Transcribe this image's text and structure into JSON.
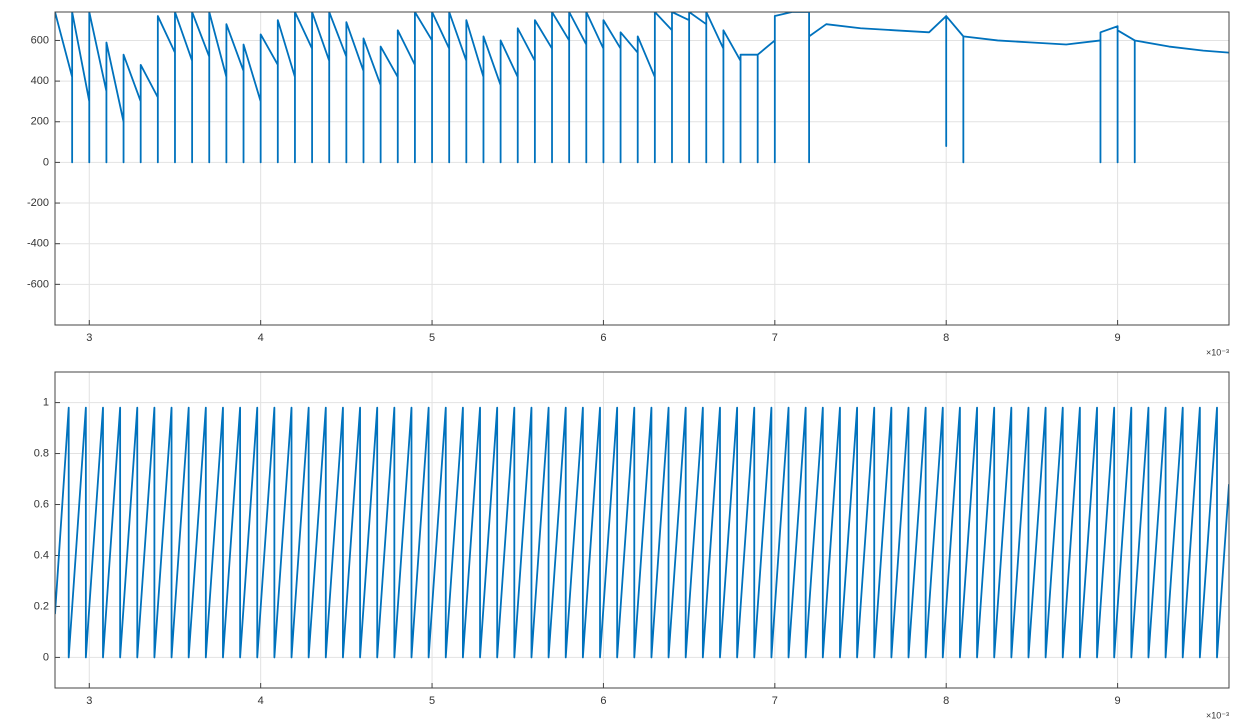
{
  "chart_data": [
    {
      "type": "line",
      "color": "#0072bd",
      "grid": true,
      "x_exponent": "×10⁻³",
      "xlim": [
        0.0028,
        0.00965
      ],
      "ylim": [
        -800,
        740
      ],
      "xticks": [
        {
          "value": 0.003,
          "label": "3"
        },
        {
          "value": 0.004,
          "label": "4"
        },
        {
          "value": 0.005,
          "label": "5"
        },
        {
          "value": 0.006,
          "label": "6"
        },
        {
          "value": 0.007,
          "label": "7"
        },
        {
          "value": 0.008,
          "label": "8"
        },
        {
          "value": 0.009,
          "label": "9"
        }
      ],
      "yticks": [
        -600,
        -400,
        -200,
        0,
        200,
        400,
        600
      ],
      "x": [
        0.0028,
        0.0029,
        0.0029,
        0.0029,
        0.003,
        0.003,
        0.003,
        0.0031,
        0.0031,
        0.0031,
        0.0032,
        0.0032,
        0.0032,
        0.0033,
        0.0033,
        0.0033,
        0.0034,
        0.0034,
        0.0034,
        0.0035,
        0.0035,
        0.0035,
        0.0036,
        0.0036,
        0.0036,
        0.0037,
        0.0037,
        0.0037,
        0.0038,
        0.0038,
        0.0038,
        0.0039,
        0.0039,
        0.0039,
        0.004,
        0.004,
        0.004,
        0.0041,
        0.0041,
        0.0041,
        0.0042,
        0.0042,
        0.0042,
        0.0043,
        0.0043,
        0.0043,
        0.0044,
        0.0044,
        0.0044,
        0.0045,
        0.0045,
        0.0045,
        0.0046,
        0.0046,
        0.0046,
        0.0047,
        0.0047,
        0.0047,
        0.0048,
        0.0048,
        0.0048,
        0.0049,
        0.0049,
        0.0049,
        0.005,
        0.005,
        0.005,
        0.0051,
        0.0051,
        0.0051,
        0.0052,
        0.0052,
        0.0052,
        0.0053,
        0.0053,
        0.0053,
        0.0054,
        0.0054,
        0.0054,
        0.0055,
        0.0055,
        0.0055,
        0.0056,
        0.0056,
        0.0056,
        0.0057,
        0.0057,
        0.0057,
        0.0058,
        0.0058,
        0.0058,
        0.0059,
        0.0059,
        0.0059,
        0.006,
        0.006,
        0.006,
        0.0061,
        0.0061,
        0.0061,
        0.0062,
        0.0062,
        0.0062,
        0.0063,
        0.0063,
        0.0063,
        0.0064,
        0.0064,
        0.0064,
        0.0065,
        0.0065,
        0.0065,
        0.0066,
        0.0066,
        0.0066,
        0.0067,
        0.0067,
        0.0067,
        0.0068,
        0.0068,
        0.0068,
        0.0069,
        0.0069,
        0.0069,
        0.007,
        0.007,
        0.007,
        0.0071,
        0.0072,
        0.0072,
        0.0072,
        0.0073,
        0.0075,
        0.0077,
        0.0079,
        0.008,
        0.008,
        0.008,
        0.0081,
        0.0081,
        0.0081,
        0.0083,
        0.0085,
        0.0087,
        0.0089,
        0.0089,
        0.0089,
        0.009,
        0.009,
        0.009,
        0.0091,
        0.0091,
        0.0091,
        0.0093,
        0.0095,
        0.00965
      ],
      "values": [
        740,
        420,
        0,
        740,
        300,
        0,
        740,
        350,
        0,
        590,
        200,
        0,
        530,
        300,
        0,
        480,
        320,
        0,
        720,
        540,
        0,
        740,
        500,
        0,
        740,
        520,
        0,
        740,
        420,
        0,
        680,
        450,
        0,
        580,
        300,
        0,
        630,
        480,
        0,
        700,
        420,
        0,
        740,
        560,
        0,
        740,
        500,
        0,
        740,
        520,
        0,
        690,
        450,
        0,
        610,
        380,
        0,
        570,
        420,
        0,
        650,
        480,
        0,
        740,
        600,
        0,
        740,
        560,
        0,
        740,
        500,
        0,
        700,
        420,
        0,
        620,
        380,
        0,
        600,
        420,
        0,
        660,
        500,
        0,
        700,
        560,
        0,
        740,
        600,
        0,
        740,
        580,
        0,
        740,
        560,
        0,
        700,
        560,
        0,
        640,
        540,
        0,
        620,
        420,
        0,
        740,
        650,
        0,
        740,
        700,
        0,
        740,
        680,
        0,
        740,
        560,
        0,
        650,
        500,
        0,
        530,
        530,
        0,
        530,
        600,
        0,
        720,
        740,
        740,
        0,
        620,
        680,
        660,
        650,
        640,
        720,
        80,
        720,
        620,
        0,
        620,
        600,
        590,
        580,
        600,
        0,
        640,
        670,
        0,
        650,
        600,
        0,
        600,
        570,
        550,
        540
      ]
    },
    {
      "type": "line",
      "color": "#0072bd",
      "grid": true,
      "x_exponent": "×10⁻³",
      "xlim": [
        0.0028,
        0.00965
      ],
      "ylim": [
        -0.12,
        1.12
      ],
      "xticks": [
        {
          "value": 0.003,
          "label": "3"
        },
        {
          "value": 0.004,
          "label": "4"
        },
        {
          "value": 0.005,
          "label": "5"
        },
        {
          "value": 0.006,
          "label": "6"
        },
        {
          "value": 0.007,
          "label": "7"
        },
        {
          "value": 0.008,
          "label": "8"
        },
        {
          "value": 0.009,
          "label": "9"
        }
      ],
      "yticks": [
        0,
        0.2,
        0.4,
        0.6,
        0.8,
        1
      ],
      "x": [
        0.0028,
        0.00288,
        0.00288,
        0.00298,
        0.00298,
        0.00308,
        0.00308,
        0.00318,
        0.00318,
        0.00328,
        0.00328,
        0.00338,
        0.00338,
        0.00348,
        0.00348,
        0.00358,
        0.00358,
        0.00368,
        0.00368,
        0.00378,
        0.00378,
        0.00388,
        0.00388,
        0.00398,
        0.00398,
        0.00408,
        0.00408,
        0.00418,
        0.00418,
        0.00428,
        0.00428,
        0.00438,
        0.00438,
        0.00448,
        0.00448,
        0.00458,
        0.00458,
        0.00468,
        0.00468,
        0.00478,
        0.00478,
        0.00488,
        0.00488,
        0.00498,
        0.00498,
        0.00508,
        0.00508,
        0.00518,
        0.00518,
        0.00528,
        0.00528,
        0.00538,
        0.00538,
        0.00548,
        0.00548,
        0.00558,
        0.00558,
        0.00568,
        0.00568,
        0.00578,
        0.00578,
        0.00588,
        0.00588,
        0.00598,
        0.00598,
        0.00608,
        0.00608,
        0.00618,
        0.00618,
        0.00628,
        0.00628,
        0.00638,
        0.00638,
        0.00648,
        0.00648,
        0.00658,
        0.00658,
        0.00668,
        0.00668,
        0.00678,
        0.00678,
        0.00688,
        0.00688,
        0.00698,
        0.00698,
        0.00708,
        0.00708,
        0.00718,
        0.00718,
        0.00728,
        0.00728,
        0.00738,
        0.00738,
        0.00748,
        0.00748,
        0.00758,
        0.00758,
        0.00768,
        0.00768,
        0.00778,
        0.00778,
        0.00788,
        0.00788,
        0.00798,
        0.00798,
        0.00808,
        0.00808,
        0.00818,
        0.00818,
        0.00828,
        0.00828,
        0.00838,
        0.00838,
        0.00848,
        0.00848,
        0.00858,
        0.00858,
        0.00868,
        0.00868,
        0.00878,
        0.00878,
        0.00888,
        0.00888,
        0.00898,
        0.00898,
        0.00908,
        0.00908,
        0.00918,
        0.00918,
        0.00928,
        0.00928,
        0.00938,
        0.00938,
        0.00948,
        0.00948,
        0.00958,
        0.00958,
        0.00965
      ],
      "values": [
        0.17,
        0.98,
        0,
        0.98,
        0,
        0.98,
        0,
        0.98,
        0,
        0.98,
        0,
        0.98,
        0,
        0.98,
        0,
        0.98,
        0,
        0.98,
        0,
        0.98,
        0,
        0.98,
        0,
        0.98,
        0,
        0.98,
        0,
        0.98,
        0,
        0.98,
        0,
        0.98,
        0,
        0.98,
        0,
        0.98,
        0,
        0.98,
        0,
        0.98,
        0,
        0.98,
        0,
        0.98,
        0,
        0.98,
        0,
        0.98,
        0,
        0.98,
        0,
        0.98,
        0,
        0.98,
        0,
        0.98,
        0,
        0.98,
        0,
        0.98,
        0,
        0.98,
        0,
        0.98,
        0,
        0.98,
        0,
        0.98,
        0,
        0.98,
        0,
        0.98,
        0,
        0.98,
        0,
        0.98,
        0,
        0.98,
        0,
        0.98,
        0,
        0.98,
        0,
        0.98,
        0,
        0.98,
        0,
        0.98,
        0,
        0.98,
        0,
        0.98,
        0,
        0.98,
        0,
        0.98,
        0,
        0.98,
        0,
        0.98,
        0,
        0.98,
        0,
        0.98,
        0,
        0.98,
        0,
        0.98,
        0,
        0.98,
        0,
        0.98,
        0,
        0.98,
        0,
        0.98,
        0,
        0.98,
        0,
        0.98,
        0,
        0.98,
        0,
        0.98,
        0,
        0.98,
        0,
        0.98,
        0,
        0.98,
        0,
        0.98,
        0,
        0.98,
        0,
        0.98,
        0,
        0.68
      ]
    }
  ]
}
